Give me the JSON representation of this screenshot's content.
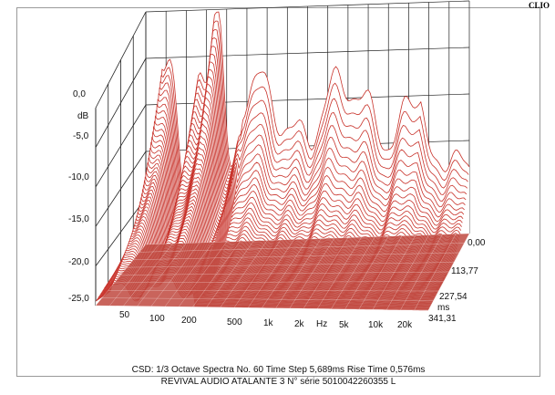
{
  "brand": "CLIO",
  "footer": {
    "line1": "CSD:  1/3 Octave   Spectra No. 60   Time Step 5,689ms   Rise Time 0,576ms",
    "line2": "REVIVAL AUDIO ATALANTE 3 N° série 5010042260355 L"
  },
  "chart_data": {
    "type": "waterfall",
    "title": "",
    "y_unit": "dB",
    "x_unit": "Hz",
    "z_unit": "ms",
    "y_ticks": [
      "0,0",
      "-5,0",
      "-10,0",
      "-15,0",
      "-20,0",
      "-25,0"
    ],
    "y_range": [
      -25,
      0
    ],
    "x_ticks": [
      "50",
      "100",
      "200",
      "500",
      "1k",
      "2k",
      "5k",
      "10k",
      "20k"
    ],
    "x_range_hz": [
      40,
      20000
    ],
    "z_ticks": [
      "0,00",
      "113,77",
      "227,54",
      "341,31"
    ],
    "z_range_ms": [
      0,
      341.31
    ],
    "spectra_count": 60,
    "line_color": "#c8322a",
    "floor_color": "#c0493f",
    "grid_color": "#222222"
  }
}
